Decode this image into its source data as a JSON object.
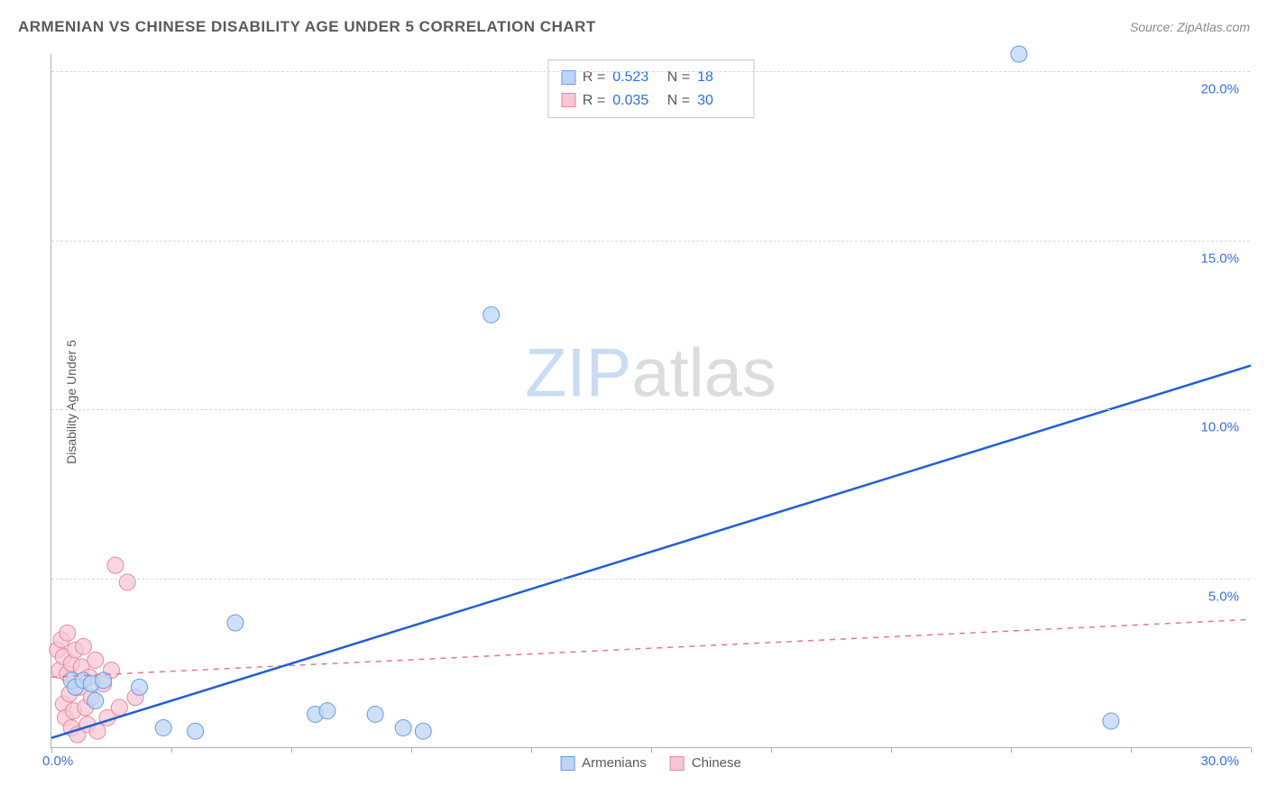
{
  "title": "ARMENIAN VS CHINESE DISABILITY AGE UNDER 5 CORRELATION CHART",
  "source": "Source: ZipAtlas.com",
  "ylabel": "Disability Age Under 5",
  "chart": {
    "type": "scatter",
    "xlim": [
      0,
      30
    ],
    "ylim": [
      0,
      20.5
    ],
    "xticks": [
      0,
      3,
      6,
      9,
      12,
      15,
      18,
      21,
      24,
      27,
      30
    ],
    "ytick_labels": [
      "5.0%",
      "10.0%",
      "15.0%",
      "20.0%"
    ],
    "ytick_values": [
      5,
      10,
      15,
      20
    ],
    "origin_label": "0.0%",
    "xmax_label": "30.0%",
    "grid_color": "#d8d8d8",
    "background_color": "#ffffff",
    "watermark_zip": "ZIP",
    "watermark_atlas": "atlas",
    "series": [
      {
        "name": "Armenians",
        "color_fill": "#bcd5f5",
        "color_stroke": "#6a9be8",
        "marker_radius": 9,
        "marker_opacity": 0.75,
        "trend": {
          "x1": 0,
          "y1": 0.3,
          "x2": 30,
          "y2": 11.3,
          "stroke": "#1f5fd8",
          "width": 2.5,
          "dash": "none"
        },
        "stats": {
          "R": "0.523",
          "N": "18"
        },
        "points": [
          [
            0.5,
            2.0
          ],
          [
            0.6,
            1.8
          ],
          [
            0.8,
            2.0
          ],
          [
            1.0,
            1.9
          ],
          [
            1.1,
            1.4
          ],
          [
            1.3,
            2.0
          ],
          [
            2.2,
            1.8
          ],
          [
            2.8,
            0.6
          ],
          [
            3.6,
            0.5
          ],
          [
            4.6,
            3.7
          ],
          [
            6.6,
            1.0
          ],
          [
            6.9,
            1.1
          ],
          [
            8.1,
            1.0
          ],
          [
            8.8,
            0.6
          ],
          [
            9.3,
            0.5
          ],
          [
            11.0,
            12.8
          ],
          [
            24.2,
            20.5
          ],
          [
            26.5,
            0.8
          ]
        ]
      },
      {
        "name": "Chinese",
        "color_fill": "#f6c6d3",
        "color_stroke": "#e888a3",
        "marker_radius": 9,
        "marker_opacity": 0.72,
        "trend": {
          "x1": 0,
          "y1": 2.1,
          "x2": 30,
          "y2": 3.8,
          "stroke": "#e27893",
          "width": 1.5,
          "dash": "6,6"
        },
        "stats": {
          "R": "0.035",
          "N": "30"
        },
        "points": [
          [
            0.15,
            2.9
          ],
          [
            0.2,
            2.3
          ],
          [
            0.25,
            3.2
          ],
          [
            0.3,
            1.3
          ],
          [
            0.3,
            2.7
          ],
          [
            0.35,
            0.9
          ],
          [
            0.4,
            2.2
          ],
          [
            0.4,
            3.4
          ],
          [
            0.45,
            1.6
          ],
          [
            0.5,
            0.6
          ],
          [
            0.5,
            2.5
          ],
          [
            0.55,
            1.1
          ],
          [
            0.6,
            2.9
          ],
          [
            0.65,
            0.4
          ],
          [
            0.7,
            1.8
          ],
          [
            0.75,
            2.4
          ],
          [
            0.8,
            3.0
          ],
          [
            0.85,
            1.2
          ],
          [
            0.9,
            0.7
          ],
          [
            0.95,
            2.1
          ],
          [
            1.0,
            1.5
          ],
          [
            1.1,
            2.6
          ],
          [
            1.15,
            0.5
          ],
          [
            1.3,
            1.9
          ],
          [
            1.4,
            0.9
          ],
          [
            1.5,
            2.3
          ],
          [
            1.6,
            5.4
          ],
          [
            1.7,
            1.2
          ],
          [
            1.9,
            4.9
          ],
          [
            2.1,
            1.5
          ]
        ]
      }
    ],
    "legend": [
      {
        "label": "Armenians",
        "fill": "#bcd5f5",
        "stroke": "#6a9be8"
      },
      {
        "label": "Chinese",
        "fill": "#f6c6d3",
        "stroke": "#e888a3"
      }
    ]
  }
}
